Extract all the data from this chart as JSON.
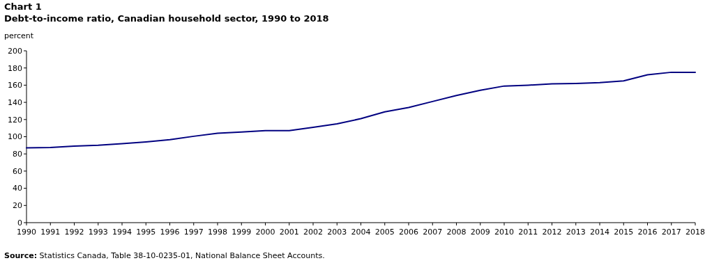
{
  "chart_data": {
    "type": "line",
    "title": "Chart 1",
    "subtitle": "Debt-to-income ratio, Canadian household sector, 1990 to 2018",
    "ylabel": "percent",
    "categories": [
      "1990",
      "1991",
      "1992",
      "1993",
      "1994",
      "1995",
      "1996",
      "1997",
      "1998",
      "1999",
      "2000",
      "2001",
      "2002",
      "2003",
      "2004",
      "2005",
      "2006",
      "2007",
      "2008",
      "2009",
      "2010",
      "2011",
      "2012",
      "2013",
      "2014",
      "2015",
      "2016",
      "2017",
      "2018"
    ],
    "series": [
      {
        "color": "#000080",
        "values": [
          87,
          87.5,
          89,
          90,
          92,
          94,
          96.5,
          100.5,
          104,
          105.5,
          107,
          107,
          111,
          115,
          121,
          129,
          134,
          141,
          148,
          154,
          159,
          160,
          161.5,
          162,
          163,
          165,
          172,
          175,
          175
        ]
      }
    ],
    "ylim": [
      0,
      200
    ],
    "yticks": [
      0,
      20,
      40,
      60,
      80,
      100,
      120,
      140,
      160,
      180,
      200
    ],
    "annotations": [
      "Source: Statistics Canada, Table 38-10-0235-01, National Balance Sheet Accounts."
    ]
  }
}
